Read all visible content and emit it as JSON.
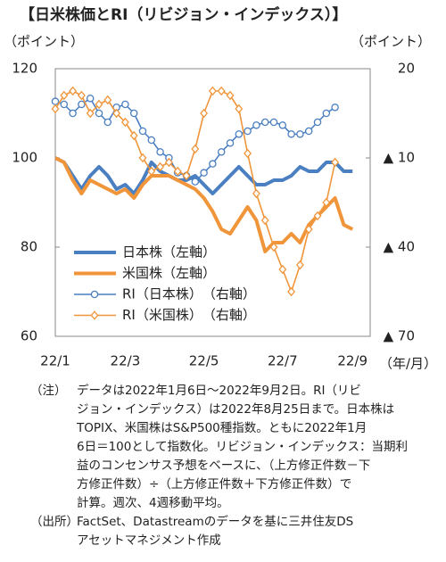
{
  "chart_data": {
    "type": "line",
    "title": "【日米株価とRI（リビジョン・インデックス）】",
    "y_label": "（ポイント）",
    "y2_label": "（ポイント）",
    "x_label": "（年/月）",
    "categories": [
      "22/1",
      null,
      null,
      null,
      null,
      null,
      null,
      null,
      "22/3",
      null,
      null,
      null,
      null,
      null,
      null,
      null,
      null,
      "22/5",
      null,
      null,
      null,
      null,
      null,
      null,
      null,
      null,
      "22/7",
      null,
      null,
      null,
      null,
      null,
      null,
      null,
      "22/9"
    ],
    "ylim": [
      60,
      120
    ],
    "yticks": [
      60,
      80,
      100,
      120
    ],
    "y2lim": [
      -70,
      20
    ],
    "y2ticks": [
      {
        "value": -70,
        "label": "▲ 70"
      },
      {
        "value": -40,
        "label": "▲ 40"
      },
      {
        "value": -10,
        "label": "▲ 10"
      },
      20
    ],
    "series": [
      {
        "name": "日本株（左軸）",
        "color": "#4a7fc1",
        "values": [
          100,
          99,
          96,
          93,
          96,
          98,
          96,
          93,
          94,
          92,
          95,
          99,
          97,
          96,
          95,
          95,
          96,
          94,
          92,
          94,
          96,
          98,
          96,
          94,
          94,
          95,
          95,
          96,
          98,
          97,
          97,
          99,
          99,
          97,
          97
        ]
      },
      {
        "name": "米国株（左軸）",
        "color": "#f0953a",
        "values": [
          100,
          99,
          95,
          92,
          95,
          94,
          93,
          92,
          93,
          91,
          94,
          96,
          96,
          96,
          95,
          94,
          93,
          91,
          88,
          84,
          83,
          86,
          89,
          86,
          79,
          81,
          81,
          83,
          81,
          85,
          87,
          89,
          91,
          85,
          84
        ]
      },
      {
        "name": "RI（日本株）　（右軸）",
        "color": "#4a7fc1",
        "axis": "y2",
        "marker": "circle",
        "values": [
          9,
          8,
          5,
          8,
          10,
          5,
          2,
          7,
          8,
          5,
          -1,
          -4,
          -8,
          -10,
          -15,
          -16,
          -18,
          -15,
          -12,
          -8,
          -5,
          -2,
          -1,
          1,
          2,
          2,
          1,
          -2,
          -2,
          -1,
          2,
          5,
          7,
          null,
          null
        ]
      },
      {
        "name": "RI（米国株）　（右軸）",
        "color": "#f0953a",
        "axis": "y2",
        "marker": "diamond",
        "values": [
          6.5,
          11,
          12.5,
          11,
          5,
          8,
          9.5,
          5,
          2,
          -2.5,
          -10,
          -14.5,
          -13,
          -11.5,
          -14.5,
          -16,
          -7,
          5,
          12.5,
          12.5,
          11,
          6.5,
          -8.5,
          -22,
          -31,
          -40,
          -47.5,
          -55,
          -46,
          -34,
          -29.5,
          -25,
          -11.5,
          null,
          null
        ]
      }
    ]
  },
  "notes": {
    "label": "（注）",
    "lines": [
      "データは2022年1月6日～2022年9月2日。RI（リビ",
      "ジョン・インデックス）は2022年8月25日まで。日本株は",
      "TOPIX、米国株はS&P500種指数。ともに2022年1月",
      "6日＝100として指数化。リビジョン・インデックス：当期利",
      "益のコンセンサス予想をベースに、（上方修正件数－下",
      "方修正件数）÷（上方修正件数＋下方修正件数）で",
      "計算。週次、4週移動平均。"
    ]
  },
  "source": {
    "label": "（出所）",
    "lines": [
      "FactSet、Datastreamのデータを基に三井住友DS",
      "アセットマネジメント作成"
    ]
  }
}
